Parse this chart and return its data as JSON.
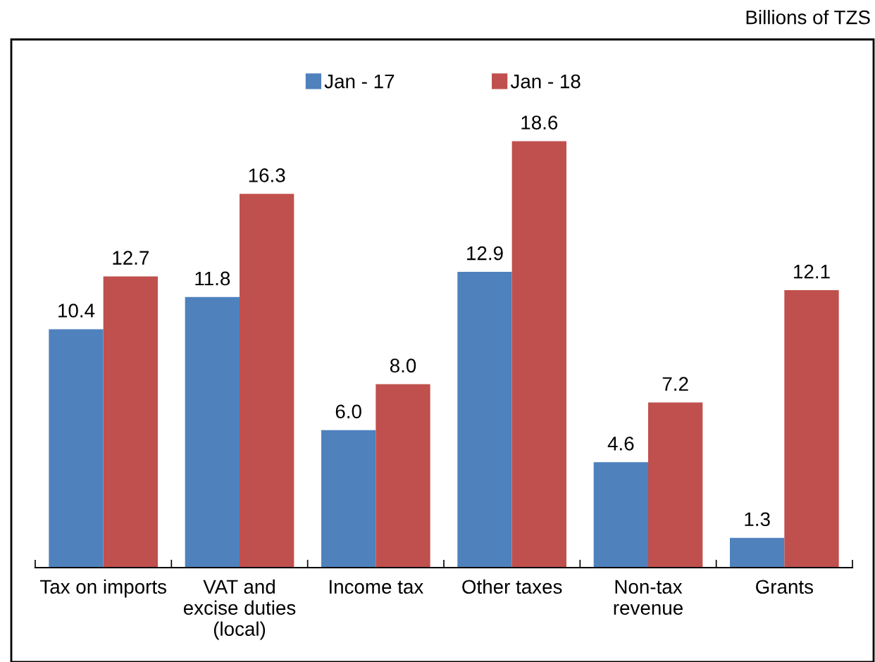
{
  "chart_data": {
    "type": "bar",
    "categories": [
      "Tax on imports",
      "VAT and\nexcise duties\n(local)",
      "Income tax",
      "Other taxes",
      "Non-tax\nrevenue",
      "Grants"
    ],
    "series": [
      {
        "name": "Jan - 17",
        "color": "#4f81bd",
        "values": [
          10.4,
          11.8,
          6.0,
          12.9,
          4.6,
          1.3
        ],
        "value_labels": [
          "10.4",
          "11.8",
          "6.0",
          "12.9",
          "4.6",
          "1.3"
        ]
      },
      {
        "name": "Jan - 18",
        "color": "#c0504d",
        "values": [
          12.7,
          16.3,
          8.0,
          18.6,
          7.2,
          12.1
        ],
        "value_labels": [
          "12.7",
          "16.3",
          "8.0",
          "18.6",
          "7.2",
          "12.1"
        ]
      }
    ],
    "annotations": [
      "Billions of TZS"
    ],
    "legend": "top",
    "grid": false,
    "tick_labels": "x"
  }
}
